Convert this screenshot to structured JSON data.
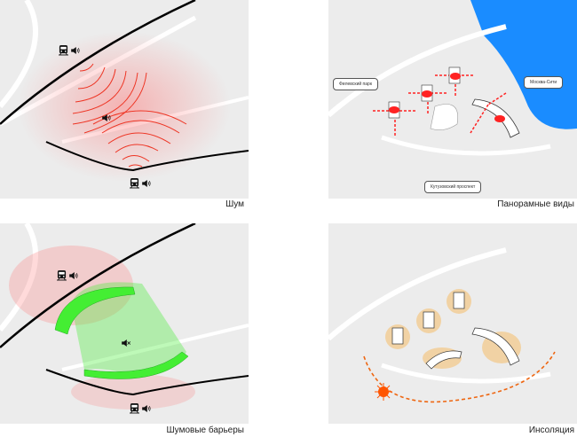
{
  "panels": [
    {
      "caption": "Шум"
    },
    {
      "caption": "Панорамные виды",
      "labels": {
        "park": "Филевский парк",
        "city": "Москва-Сити",
        "avenue": "Кутузовский проспект"
      }
    },
    {
      "caption": "Шумовые барьеры"
    },
    {
      "caption": "Инсоляция"
    }
  ],
  "colors": {
    "noise": "#ff3b3b",
    "river": "#1a8cff",
    "barrier": "#44ee33",
    "sun": "#ff5500",
    "sun_path": "#ee6611",
    "map": "#ececec"
  },
  "icons": [
    "train-icon",
    "speaker-icon",
    "muted-speaker-icon",
    "eye-icon",
    "sun-icon"
  ]
}
